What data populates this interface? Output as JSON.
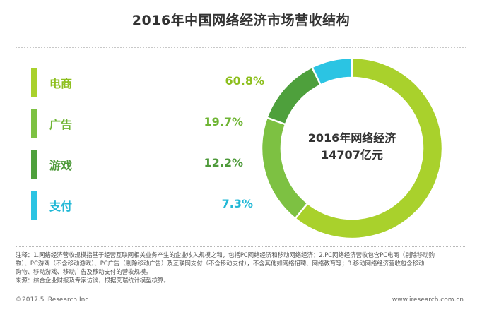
{
  "title": "2016年中国网络经济市场营收结构",
  "center": {
    "line1": "2016年网络经济",
    "line2": "14707亿元"
  },
  "chart_data": {
    "type": "pie",
    "title": "2016年中国网络经济市场营收结构",
    "categories": [
      "电商",
      "广告",
      "游戏",
      "支付"
    ],
    "values": [
      60.8,
      19.7,
      12.2,
      7.3
    ],
    "value_labels": [
      "60.8%",
      "19.7%",
      "12.2%",
      "7.3%"
    ],
    "colors": [
      "#a9d12c",
      "#7dc142",
      "#4ea03c",
      "#2bc4e3"
    ],
    "style": "donut",
    "legend_position": "left"
  },
  "legend_text_colors": [
    "#8dbf1e",
    "#6fb534",
    "#4e9a3a",
    "#22b8d6"
  ],
  "notes": {
    "line1": "注释：1.网络经济营收规模指基于经营互联网相关业务产生的企业收入规模之和，包括PC网络经济和移动网络经济；2.PC网络经济营收包含PC电商（剔除移动购",
    "line2": "物）、PC游戏（不含移动游戏）、PC广告（剔除移动广告）及互联网支付（不含移动支付），不含其他如网络招聘、网络教育等；3.移动网络经济营收包含移动",
    "line3": "购物、移动游戏、移动广告及移动支付的营收规模。",
    "line4": "来源：综合企业财报及专家访谈，根据艾瑞统计模型核算。"
  },
  "footer": {
    "left": "©2017.5 iResearch Inc",
    "right": "www.iresearch.com.cn"
  }
}
